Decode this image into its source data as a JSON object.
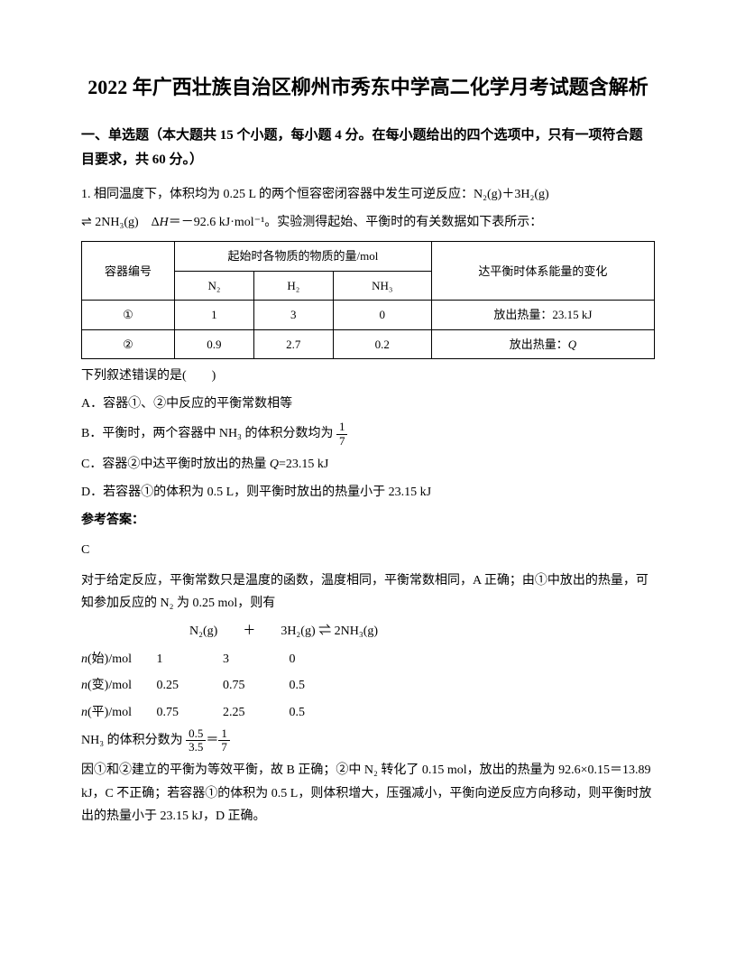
{
  "title": "2022 年广西壮族自治区柳州市秀东中学高二化学月考试题含解析",
  "section_header": "一、单选题（本大题共 15 个小题，每小题 4 分。在每小题给出的四个选项中，只有一项符合题目要求，共 60 分。）",
  "q1": {
    "intro": "1. 相同温度下，体积均为 0.25 L 的两个恒容密闭容器中发生可逆反应：N₂(g)＋3H₂(g)",
    "equation": "⇌ 2NH₃(g)　Δ",
    "equation_h": "H",
    "equation_rest": "＝－92.6 kJ·mol⁻¹。实验测得起始、平衡时的有关数据如下表所示：",
    "table": {
      "header_container": "容器编号",
      "header_initial": "起始时各物质的物质的量/mol",
      "header_energy": "达平衡时体系能量的变化",
      "col_n2": "N₂",
      "col_h2": "H₂",
      "col_nh3": "NH₃",
      "rows": [
        {
          "id": "①",
          "n2": "1",
          "h2": "3",
          "nh3": "0",
          "energy": "放出热量：23.15 kJ"
        },
        {
          "id": "②",
          "n2": "0.9",
          "h2": "2.7",
          "nh3": "0.2",
          "energy_prefix": "放出热量：",
          "energy_q": "Q"
        }
      ]
    },
    "post_table": "下列叙述错误的是(　　)",
    "options": {
      "A": "A．容器①、②中反应的平衡常数相等",
      "B_pre": "B．平衡时，两个容器中 NH₃ 的体积分数均为 ",
      "B_frac_num": "1",
      "B_frac_den": "7",
      "C_pre": "C．容器②中达平衡时放出的热量 ",
      "C_q": "Q",
      "C_post": "=23.15 kJ",
      "D": "D．若容器①的体积为 0.5 L，则平衡时放出的热量小于 23.15 kJ"
    },
    "answer_label": "参考答案：",
    "answer": "C",
    "explanation1": "对于给定反应，平衡常数只是温度的函数，温度相同，平衡常数相同，A 正确；由①中放出的热量，可知参加反应的 N₂ 为 0.25 mol，则有",
    "reaction_line": "N₂(g)　　＋　　3H₂(g) ⇌ 2NH₃(g)",
    "mol_rows": [
      {
        "label_pre": "n",
        "label": "(始)/mol",
        "v1": "1",
        "v2": "3",
        "v3": "0"
      },
      {
        "label_pre": "n",
        "label": "(变)/mol",
        "v1": "0.25",
        "v2": "0.75",
        "v3": "0.5"
      },
      {
        "label_pre": "n",
        "label": "(平)/mol",
        "v1": "0.75",
        "v2": "2.25",
        "v3": "0.5"
      }
    ],
    "nh3_frac_pre": "NH₃ 的体积分数为 ",
    "nh3_frac_num": "0.5",
    "nh3_frac_den": "3.5",
    "nh3_frac_eq": "＝",
    "nh3_frac2_num": "1",
    "nh3_frac2_den": "7",
    "explanation2": "因①和②建立的平衡为等效平衡，故 B 正确；②中 N₂ 转化了 0.15 mol，放出的热量为 92.6×0.15＝13.89 kJ，C 不正确；若容器①的体积为 0.5 L，则体积增大，压强减小，平衡向逆反应方向移动，则平衡时放出的热量小于 23.15 kJ，D 正确。"
  }
}
